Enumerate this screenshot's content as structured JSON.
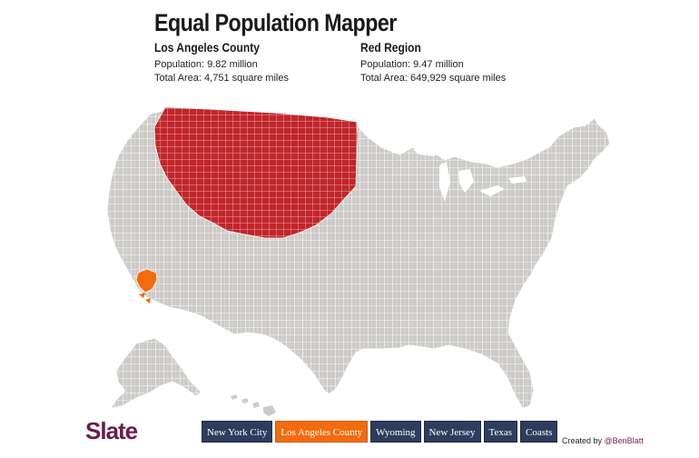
{
  "header": {
    "title": "Equal Population Mapper"
  },
  "left_region": {
    "name": "Los Angeles County",
    "population": "Population: 9.82 million",
    "area": "Total Area: 4,751 square miles",
    "color": "#f26b0f"
  },
  "right_region": {
    "name": "Red Region",
    "population": "Population: 9.47 million",
    "area": "Total Area: 649,929 square miles",
    "color": "#c1262b"
  },
  "map": {
    "base_color": "#cdcbc8",
    "border_color": "#ffffff",
    "icons": [
      "us-county-map",
      "alaska-shape",
      "hawaii-shape"
    ]
  },
  "footer": {
    "logo": "Slate",
    "buttons": [
      {
        "label": "New York City",
        "active": false
      },
      {
        "label": "Los Angeles County",
        "active": true
      },
      {
        "label": "Wyoming",
        "active": false
      },
      {
        "label": "New Jersey",
        "active": false
      },
      {
        "label": "Texas",
        "active": false
      },
      {
        "label": "Coasts",
        "active": false
      }
    ],
    "credit_prefix": "Created by ",
    "credit_handle": "@BenBlatt"
  }
}
